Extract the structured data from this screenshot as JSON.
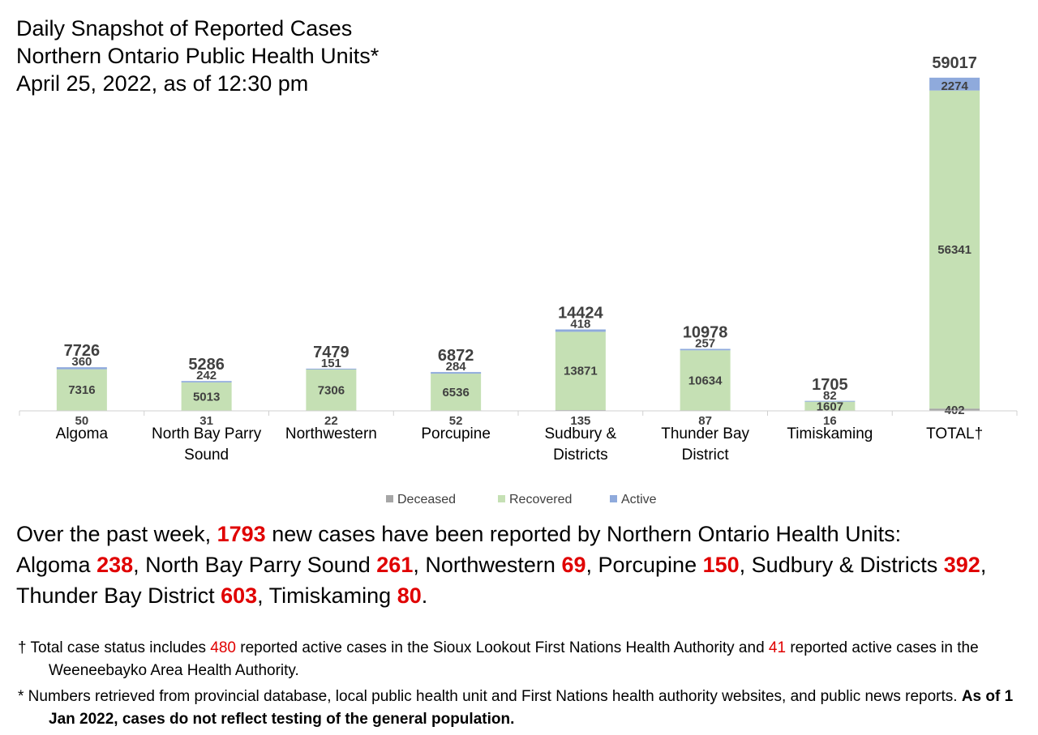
{
  "title": {
    "line1": "Daily Snapshot of Reported Cases",
    "line2": "Northern Ontario Public Health Units*",
    "line3": "April 25, 2022, as of 12:30 pm"
  },
  "chart_data": {
    "type": "bar",
    "stacked": true,
    "categories": [
      [
        "Algoma"
      ],
      [
        "North Bay Parry",
        "Sound"
      ],
      [
        "Northwestern"
      ],
      [
        "Porcupine"
      ],
      [
        "Sudbury &",
        "Districts"
      ],
      [
        "Thunder Bay",
        "District"
      ],
      [
        "Timiskaming"
      ],
      [
        "TOTAL†"
      ]
    ],
    "series": [
      {
        "name": "Deceased",
        "color": "#a6a6a6",
        "values": [
          50,
          31,
          22,
          52,
          135,
          87,
          16,
          402
        ]
      },
      {
        "name": "Recovered",
        "color": "#c5e0b4",
        "values": [
          7316,
          5013,
          7306,
          6536,
          13871,
          10634,
          1607,
          56341
        ]
      },
      {
        "name": "Active",
        "color": "#8faadc",
        "values": [
          360,
          242,
          151,
          284,
          418,
          257,
          82,
          2274
        ]
      }
    ],
    "totals": [
      7726,
      5286,
      7479,
      6872,
      14424,
      10978,
      1705,
      59017
    ],
    "ylim": [
      0,
      60000
    ],
    "legend_position": "bottom",
    "grid": false
  },
  "summary": {
    "p1": "Over the past week, ",
    "total": "1793",
    "p2": " new cases have been reported by Northern Ontario Health Units:",
    "items": [
      {
        "label": "Algoma ",
        "value": "238",
        "after": ", "
      },
      {
        "label": "North Bay Parry Sound ",
        "value": "261",
        "after": ", "
      },
      {
        "label": "Northwestern ",
        "value": "69",
        "after": ", "
      },
      {
        "label": "Porcupine ",
        "value": "150",
        "after": ", "
      },
      {
        "label": "Sudbury & Districts ",
        "value": "392",
        "after": ", "
      },
      {
        "label": "Thunder Bay District ",
        "value": "603",
        "after": ", "
      },
      {
        "label": "Timiskaming ",
        "value": "80",
        "after": "."
      }
    ]
  },
  "notes": {
    "dagger": {
      "p1": "† Total case status includes ",
      "n1": "480",
      "p2": " reported active cases in the Sioux Lookout First Nations Health Authority and ",
      "n2": "41",
      "p3": " reported active cases in the Weeneebayko Area Health Authority."
    },
    "star": {
      "p1": "* Numbers retrieved from provincial database, local public health unit and First Nations health authority websites, and public news reports. ",
      "bold": "As of 1 Jan 2022, cases do not reflect testing of the general population."
    }
  }
}
